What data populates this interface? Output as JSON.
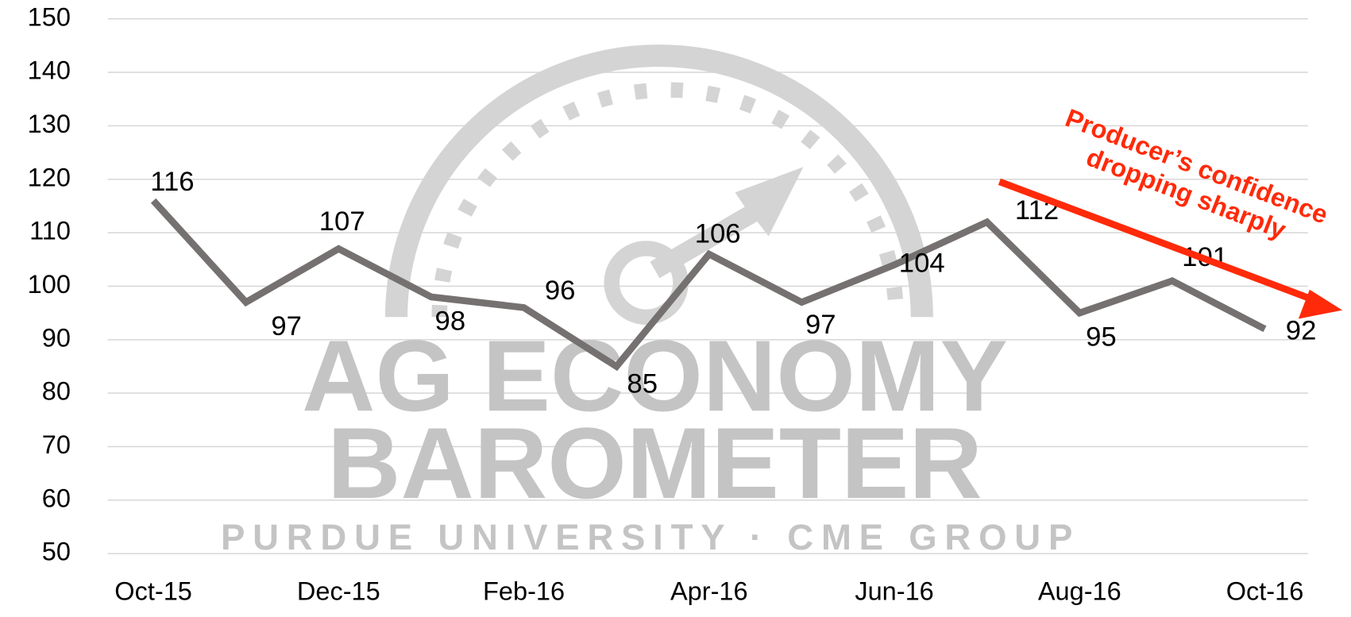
{
  "chart_data": {
    "type": "line",
    "categories": [
      "Oct-15",
      null,
      "Dec-15",
      null,
      "Feb-16",
      null,
      "Apr-16",
      null,
      "Jun-16",
      null,
      "Aug-16",
      null,
      "Oct-16"
    ],
    "series": [
      {
        "name": "Ag Economy Barometer",
        "color": "#767171",
        "values": [
          116,
          97,
          107,
          98,
          96,
          85,
          106,
          97,
          104,
          112,
          95,
          101,
          92
        ]
      }
    ],
    "ylim": [
      50,
      150
    ],
    "yticks": [
      50,
      60,
      70,
      80,
      90,
      100,
      110,
      120,
      130,
      140,
      150
    ],
    "grid": true,
    "annotation": [
      "Producer’s confidence",
      "dropping sharply"
    ],
    "annotation_color": "#ff2a0a",
    "watermark": [
      "AG ECONOMY",
      "BAROMETER",
      "PURDUE UNIVERSITY  ·  CME GROUP"
    ]
  }
}
